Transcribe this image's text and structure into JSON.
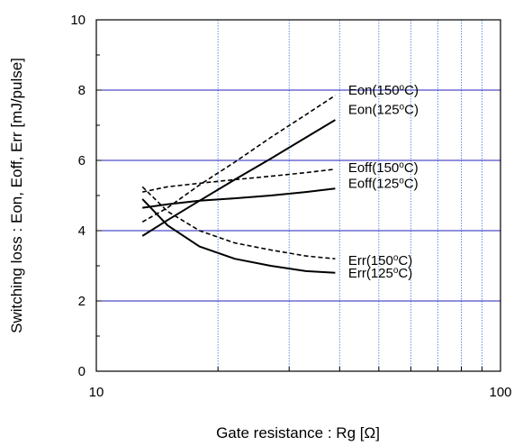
{
  "chart_data": {
    "type": "line",
    "xlabel": "Gate resistance : Rg [Ω]",
    "ylabel": "Switching loss  : Eon, Eoff, Err  [mJ/pulse]",
    "x_scale": "log",
    "xlim": [
      10,
      100
    ],
    "ylim": [
      0,
      10
    ],
    "x_tick_labels": [
      "10",
      "100"
    ],
    "y_tick_labels": [
      "0",
      "2",
      "4",
      "6",
      "8",
      "10"
    ],
    "grid": true,
    "colors": {
      "major_grid": "#2222bb",
      "minor_grid": "#5b8fe0",
      "frame": "#000000"
    },
    "series": [
      {
        "name": "Eon(150°C)",
        "style": "dashed",
        "x": [
          13,
          15,
          18,
          22,
          27,
          33,
          39
        ],
        "y": [
          4.25,
          4.65,
          5.3,
          5.95,
          6.65,
          7.3,
          7.85
        ]
      },
      {
        "name": "Eon(125°C)",
        "style": "solid",
        "x": [
          13,
          15,
          18,
          22,
          27,
          33,
          39
        ],
        "y": [
          3.85,
          4.3,
          4.85,
          5.45,
          6.05,
          6.65,
          7.15
        ]
      },
      {
        "name": "Eoff(150°C)",
        "style": "dashed",
        "x": [
          13,
          15,
          18,
          22,
          27,
          33,
          39
        ],
        "y": [
          5.1,
          5.25,
          5.35,
          5.45,
          5.55,
          5.65,
          5.75
        ]
      },
      {
        "name": "Eoff(125°C)",
        "style": "solid",
        "x": [
          13,
          15,
          18,
          22,
          27,
          33,
          39
        ],
        "y": [
          4.65,
          4.75,
          4.85,
          4.92,
          5.0,
          5.1,
          5.2
        ]
      },
      {
        "name": "Err(150°C)",
        "style": "dashed",
        "x": [
          13,
          15,
          18,
          22,
          27,
          33,
          39
        ],
        "y": [
          5.25,
          4.55,
          4.0,
          3.65,
          3.45,
          3.28,
          3.2
        ]
      },
      {
        "name": "Err(125°C)",
        "style": "solid",
        "x": [
          13,
          15,
          18,
          22,
          27,
          33,
          39
        ],
        "y": [
          4.9,
          4.15,
          3.55,
          3.2,
          3.0,
          2.85,
          2.8
        ]
      }
    ],
    "series_labels": [
      {
        "text_parts": [
          "Eon(150",
          "o",
          "C)"
        ],
        "x": 42,
        "y": 8.0
      },
      {
        "text_parts": [
          "Eon(125",
          "o",
          "C)"
        ],
        "x": 42,
        "y": 7.45
      },
      {
        "text_parts": [
          "Eoff(150",
          "o",
          "C)"
        ],
        "x": 42,
        "y": 5.8
      },
      {
        "text_parts": [
          "Eoff(125",
          "o",
          "C)"
        ],
        "x": 42,
        "y": 5.35
      },
      {
        "text_parts": [
          "Err(150",
          "o",
          "C)"
        ],
        "x": 42,
        "y": 3.15
      },
      {
        "text_parts": [
          "Err(125",
          "o",
          "C)"
        ],
        "x": 42,
        "y": 2.8
      }
    ]
  }
}
